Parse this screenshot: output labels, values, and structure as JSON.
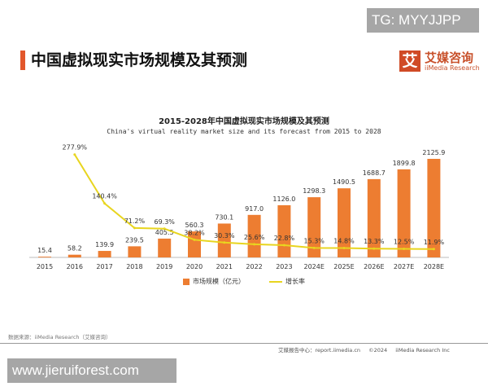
{
  "watermark_top": "TG: MYYJJPP",
  "page_title": "中国虚拟现实市场规模及其预测",
  "logo": {
    "cn": "艾媒咨询",
    "en": "iiMedia Research",
    "mark": "艾"
  },
  "source": "数据来源：iiMedia Research（艾媒咨询）",
  "footer": {
    "center": "艾媒报告中心：report.iimedia.cn",
    "copyright": "©2024",
    "company": "iiMedia Research Inc"
  },
  "watermark_bottom": "www.jieruiforest.com",
  "colors": {
    "bar": "#ed7d31",
    "line": "#e8d51f",
    "accent": "#e2572b"
  },
  "chart_data": {
    "type": "bar",
    "title": "2015-2028年中国虚拟现实市场规模及其预测",
    "subtitle": "China's virtual reality market size and its forecast from 2015 to 2028",
    "categories": [
      "2015",
      "2016",
      "2017",
      "2018",
      "2019",
      "2020",
      "2021",
      "2022",
      "2023",
      "2024E",
      "2025E",
      "2026E",
      "2027E",
      "2028E"
    ],
    "series": [
      {
        "name": "市场规模（亿元）",
        "type": "bar",
        "values": [
          15.4,
          58.2,
          139.9,
          239.5,
          405.5,
          560.3,
          730.1,
          917.0,
          1126.0,
          1298.3,
          1490.5,
          1688.7,
          1899.8,
          2125.9
        ],
        "labels": [
          "15.4",
          "58.2",
          "139.9",
          "239.5",
          "405.5",
          "560.3",
          "730.1",
          "917.0",
          "1126.0",
          "1298.3",
          "1490.5",
          "1688.7",
          "1899.8",
          "2125.9"
        ]
      },
      {
        "name": "增长率",
        "type": "line",
        "values": [
          null,
          277.9,
          140.4,
          71.2,
          69.3,
          38.2,
          30.3,
          25.6,
          22.8,
          15.3,
          14.8,
          13.3,
          12.5,
          11.9
        ],
        "labels": [
          null,
          "277.9%",
          "140.4%",
          "71.2%",
          "69.3%",
          "38.2%",
          "30.3%",
          "25.6%",
          "22.8%",
          "15.3%",
          "14.8%",
          "13.3%",
          "12.5%",
          "11.9%"
        ]
      }
    ],
    "legend": "bottom"
  }
}
